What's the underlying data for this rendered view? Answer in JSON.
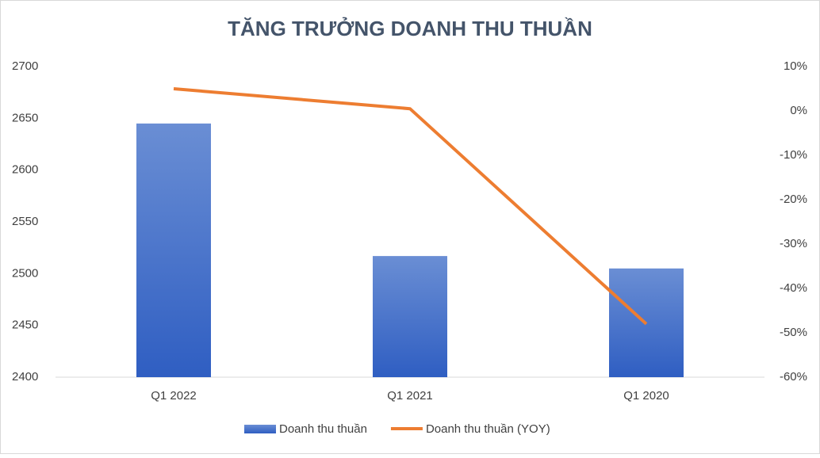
{
  "chart_data": {
    "type": "bar-line",
    "title": "TĂNG TRƯỞNG DOANH THU THUẦN",
    "categories": [
      "Q1 2022",
      "Q1 2021",
      "Q1 2020"
    ],
    "series": [
      {
        "name": "Doanh thu thuần",
        "type": "bar",
        "color": "#4472c4",
        "values": [
          2645,
          2517,
          2505
        ]
      },
      {
        "name": "Doanh thu thuần (YOY)",
        "type": "line",
        "color": "#ed7d31",
        "axis": "y2",
        "values": [
          5,
          0.5,
          -48
        ]
      }
    ],
    "ylim": [
      2400,
      2700
    ],
    "yticks": [
      2400,
      2450,
      2500,
      2550,
      2600,
      2650,
      2700
    ],
    "y2lim": [
      -60,
      10
    ],
    "y2ticks": [
      {
        "value": -60,
        "label": "-60%"
      },
      {
        "value": -50,
        "label": "-50%"
      },
      {
        "value": -40,
        "label": "-40%"
      },
      {
        "value": -30,
        "label": "-30%"
      },
      {
        "value": -20,
        "label": "-20%"
      },
      {
        "value": -10,
        "label": "-10%"
      },
      {
        "value": 0,
        "label": "0%"
      },
      {
        "value": 10,
        "label": "10%"
      }
    ],
    "grid": false,
    "legend": "bottom"
  }
}
